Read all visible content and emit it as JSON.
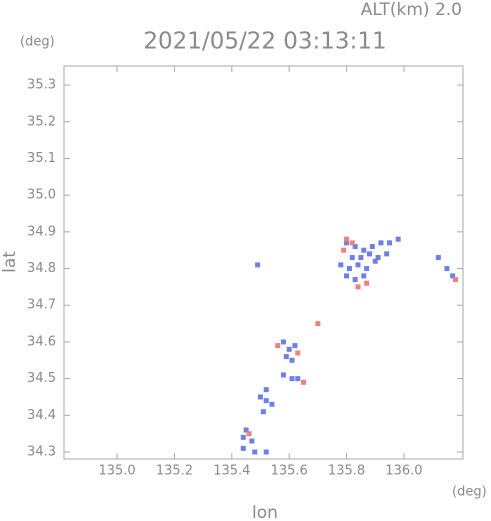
{
  "chart_data": {
    "type": "scatter",
    "title": "2021/05/22 03:13:11",
    "annotation": "ALT(km) 2.0",
    "y_unit": "(deg)",
    "x_unit": "(deg)",
    "x_label": "lon",
    "y_label": "lat",
    "xlim": [
      134.815,
      136.206
    ],
    "ylim": [
      34.281,
      35.352
    ],
    "xticks": [
      {
        "value": 135,
        "label": "135.0"
      },
      135.2,
      135.4,
      135.6,
      135.8,
      {
        "value": 136,
        "label": "136.0"
      }
    ],
    "yticks": [
      34.3,
      34.4,
      34.5,
      34.6,
      34.7,
      34.8,
      34.9,
      {
        "value": 35,
        "label": "35.0"
      },
      35.1,
      35.2,
      35.3
    ],
    "grid": false,
    "series": [
      {
        "color": "#6f7fe8",
        "x": [
          135.8,
          135.83,
          135.86,
          135.89,
          135.92,
          135.95,
          135.98,
          135.82,
          135.85,
          135.88,
          135.91,
          135.94,
          135.78,
          135.81,
          135.84,
          135.87,
          135.9,
          135.8,
          135.83,
          135.86,
          135.49,
          136.12,
          136.15,
          136.17,
          135.58,
          135.6,
          135.62,
          135.59,
          135.61,
          135.58,
          135.61,
          135.63,
          135.52,
          135.5,
          135.52,
          135.54,
          135.51,
          135.45,
          135.44,
          135.47,
          135.44,
          135.48,
          135.52
        ],
        "y": [
          34.87,
          34.86,
          34.85,
          34.86,
          34.87,
          34.87,
          34.88,
          34.83,
          34.83,
          34.84,
          34.83,
          34.84,
          34.81,
          34.8,
          34.81,
          34.8,
          34.82,
          34.78,
          34.77,
          34.78,
          34.81,
          34.83,
          34.8,
          34.78,
          34.6,
          34.58,
          34.59,
          34.56,
          34.55,
          34.51,
          34.5,
          34.5,
          34.47,
          34.45,
          34.44,
          34.43,
          34.41,
          34.36,
          34.34,
          34.33,
          34.31,
          34.3,
          34.3
        ]
      },
      {
        "color": "#f08080",
        "x": [
          135.8,
          135.82,
          135.79,
          135.87,
          135.84,
          136.18,
          135.7,
          135.63,
          135.65,
          135.56,
          135.46
        ],
        "y": [
          34.88,
          34.87,
          34.85,
          34.76,
          34.75,
          34.77,
          34.65,
          34.57,
          34.49,
          34.59,
          34.35
        ]
      }
    ]
  }
}
